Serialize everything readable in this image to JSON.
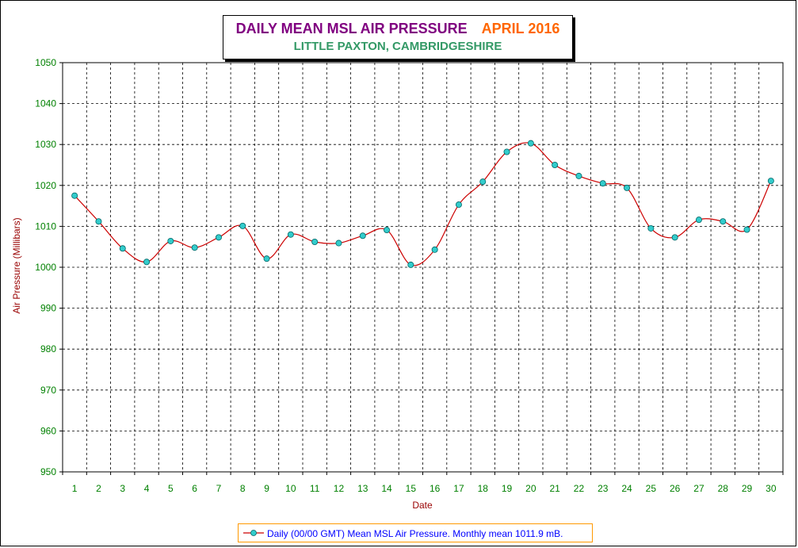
{
  "chart_data": {
    "type": "line",
    "title": "DAILY MEAN MSL AIR PRESSURE",
    "title_period": "APRIL 2016",
    "subtitle": "LITTLE PAXTON, CAMBRIDGESHIRE",
    "xlabel": "Date",
    "ylabel": "Air Pressure (Millibars)",
    "x": [
      1,
      2,
      3,
      4,
      5,
      6,
      7,
      8,
      9,
      10,
      11,
      12,
      13,
      14,
      15,
      16,
      17,
      18,
      19,
      20,
      21,
      22,
      23,
      24,
      25,
      26,
      27,
      28,
      29,
      30
    ],
    "ylim": [
      950,
      1050
    ],
    "yticks": [
      950,
      960,
      970,
      980,
      990,
      1000,
      1010,
      1020,
      1030,
      1040,
      1050
    ],
    "grid": true,
    "legend_position": "bottom",
    "series": [
      {
        "name": "Daily (00/00 GMT) Mean MSL Air Pressure. Monthly mean 1011.9 mB.",
        "values": [
          1017.5,
          1011.2,
          1004.6,
          1001.3,
          1006.4,
          1004.8,
          1007.3,
          1010.1,
          1002.1,
          1008.0,
          1006.2,
          1005.9,
          1007.7,
          1009.1,
          1000.6,
          1004.3,
          1015.3,
          1020.9,
          1028.2,
          1030.3,
          1025.0,
          1022.3,
          1020.5,
          1019.4,
          1009.5,
          1007.3,
          1011.6,
          1011.2,
          1009.2,
          1021.1
        ],
        "line_color": "#cc0000",
        "marker_color": "#33cccc"
      }
    ],
    "colors": {
      "axis_labels": "#008000",
      "axis_titles": "#990000",
      "grid": "#000000"
    }
  }
}
